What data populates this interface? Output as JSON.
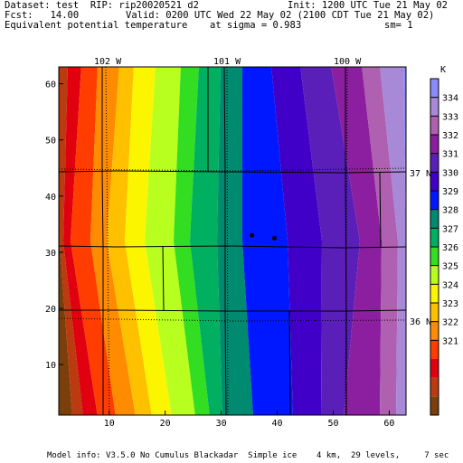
{
  "header": {
    "dataset": "Dataset: test  RIP: rip20020521 d2",
    "init": "Init: 1200 UTC Tue 21 May 02",
    "fcst": "Fcst:   14.00",
    "valid": "Valid: 0200 UTC Wed 22 May 02 (2100 CDT Tue 21 May 02)",
    "field": "Equivalent potential temperature",
    "sigma": "at sigma = 0.983",
    "sm": "sm= 1"
  },
  "map": {
    "longitude_labels": [
      "102 W",
      "101 W",
      "100 W"
    ],
    "latitude_labels": [
      "37 N",
      "36 N"
    ],
    "y_ticks": [
      "60",
      "50",
      "40",
      "30",
      "20",
      "10"
    ],
    "x_ticks": [
      "10",
      "20",
      "30",
      "40",
      "50",
      "60"
    ],
    "x_range": [
      1,
      63
    ],
    "y_range": [
      1,
      63
    ],
    "stations": [
      {
        "x": 35.5,
        "y": 33.0
      },
      {
        "x": 39.5,
        "y": 32.5
      }
    ]
  },
  "colorbar": {
    "unit": "K",
    "levels": [
      "334",
      "333",
      "332",
      "331",
      "330",
      "329",
      "328",
      "327",
      "326",
      "325",
      "324",
      "323",
      "322",
      "321"
    ],
    "colors": [
      "#7a3f0a",
      "#bb3a10",
      "#e00010",
      "#ff3d00",
      "#ff8c00",
      "#ffc000",
      "#fbf600",
      "#b8ff20",
      "#33dd22",
      "#00b060",
      "#008a70",
      "#0018ff",
      "#4000c8",
      "#5a1fb8",
      "#8b1f9f",
      "#b060b0",
      "#a889d8",
      "#8a8afc"
    ]
  },
  "footer": "Model info: V3.5.0 No Cumulus Blackadar  Simple ice    4 km,  29 levels,     7 sec"
}
